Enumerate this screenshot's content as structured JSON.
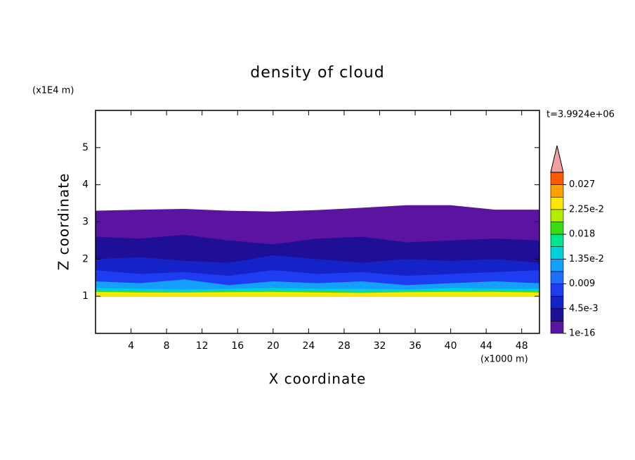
{
  "chart_data": {
    "type": "contour",
    "title": "density of cloud",
    "time_label": "t=3.9924e+06",
    "x_label": "X coordinate",
    "y_label": "Z coordinate",
    "x_unit": "(x1000 m)",
    "y_unit": "(x1E4 m)",
    "xlim": [
      0,
      50
    ],
    "ylim": [
      0,
      6
    ],
    "xticks": [
      4,
      8,
      12,
      16,
      20,
      24,
      28,
      32,
      36,
      40,
      44,
      48
    ],
    "yticks": [
      1,
      2,
      3,
      4,
      5
    ],
    "colorbar": {
      "levels": [
        1e-16,
        0.00225,
        0.0045,
        0.00675,
        0.009,
        0.01125,
        0.0135,
        0.01575,
        0.018,
        0.02025,
        0.0225,
        0.02475,
        0.027,
        0.02925
      ],
      "colors": [
        "#5a14a0",
        "#1e0f96",
        "#1423c8",
        "#1e3cf0",
        "#1e6eff",
        "#14a0ff",
        "#00d2dc",
        "#00e68c",
        "#3cdc14",
        "#b4eb00",
        "#ffe600",
        "#ffa000",
        "#ff5a00"
      ],
      "extend_color": "#f0a0a0",
      "ticks": [
        {
          "value": 1e-16,
          "label": "1e-16"
        },
        {
          "value": 0.0045,
          "label": "4.5e-3"
        },
        0.009,
        {
          "value": 0.0135,
          "label": "1.35e-2"
        },
        0.018,
        {
          "value": 0.0225,
          "label": "2.25e-2"
        },
        0.027
      ]
    },
    "field": {
      "x": [
        0,
        5,
        10,
        15,
        20,
        25,
        30,
        35,
        40,
        45,
        50
      ],
      "base": 1,
      "layers": [
        {
          "level": 0,
          "top": [
            3.3,
            3.33,
            3.35,
            3.3,
            3.28,
            3.32,
            3.38,
            3.45,
            3.45,
            3.33,
            3.33
          ]
        },
        {
          "level": 1,
          "top": [
            2.6,
            2.55,
            2.65,
            2.5,
            2.4,
            2.55,
            2.6,
            2.45,
            2.5,
            2.55,
            2.5
          ]
        },
        {
          "level": 2,
          "top": [
            2.0,
            2.05,
            1.95,
            1.9,
            2.1,
            2.0,
            1.9,
            2.0,
            1.95,
            2.0,
            1.9
          ]
        },
        {
          "level": 3,
          "top": [
            1.7,
            1.6,
            1.65,
            1.55,
            1.7,
            1.6,
            1.65,
            1.55,
            1.6,
            1.65,
            1.7
          ]
        },
        {
          "level": 5,
          "top": [
            1.4,
            1.35,
            1.45,
            1.3,
            1.4,
            1.35,
            1.4,
            1.3,
            1.35,
            1.4,
            1.35
          ]
        },
        {
          "level": 6,
          "top": [
            1.22,
            1.2,
            1.18,
            1.2,
            1.22,
            1.2,
            1.2,
            1.18,
            1.22,
            1.2,
            1.2
          ]
        },
        {
          "level": 8,
          "top": [
            1.15,
            1.13,
            1.12,
            1.14,
            1.16,
            1.14,
            1.12,
            1.13,
            1.15,
            1.16,
            1.14
          ]
        },
        {
          "level": 10,
          "top": [
            1.12,
            1.1,
            1.1,
            1.11,
            1.12,
            1.1,
            1.09,
            1.11,
            1.12,
            1.12,
            1.1
          ]
        }
      ]
    }
  }
}
